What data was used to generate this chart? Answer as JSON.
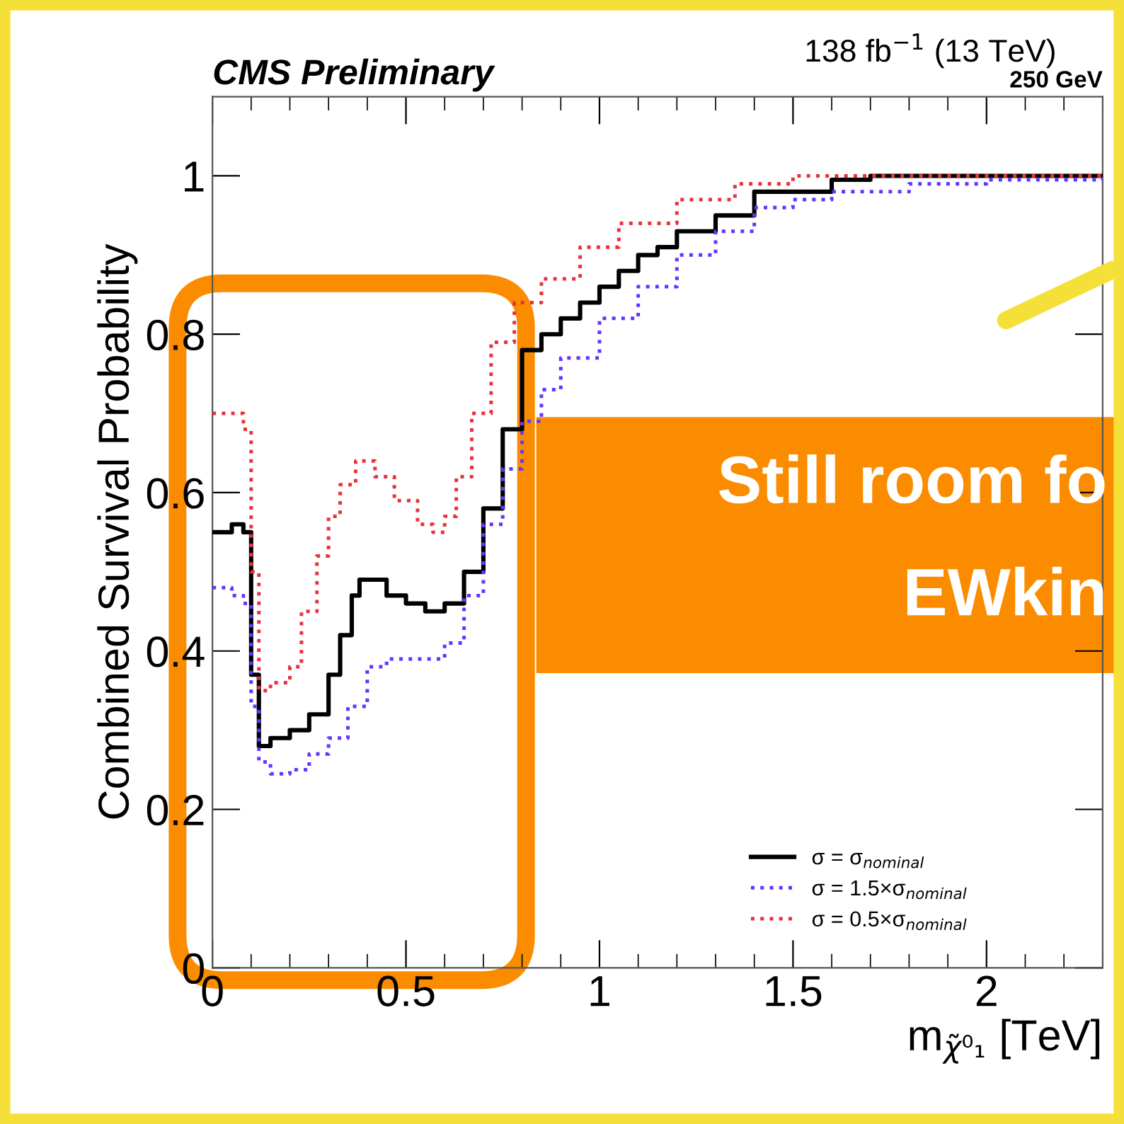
{
  "chart_data": {
    "type": "step",
    "title": "CMS Preliminary",
    "subtitle": "138 fb$^{−1}$ (13 TeV)",
    "xlabel": "m$_{χ̃⁰₁}$ [TeV]",
    "ylabel": "Combined Survival Probability",
    "annotations": [
      "250 GeV",
      "Still room fo",
      "EWkin"
    ],
    "xlim": [
      0,
      2.3
    ],
    "ylim": [
      0,
      1.1
    ],
    "xticks": [
      0,
      0.5,
      1,
      1.5,
      2
    ],
    "yticks": [
      0,
      0.2,
      0.4,
      0.6,
      0.8,
      1
    ],
    "grid": false,
    "legend": "bottom right",
    "series": [
      {
        "name": "σ = σ$_{nominal}$",
        "color": "#000000",
        "line_style": "solid",
        "x": [
          0,
          0.05,
          0.08,
          0.1,
          0.12,
          0.15,
          0.2,
          0.25,
          0.3,
          0.33,
          0.36,
          0.38,
          0.42,
          0.45,
          0.5,
          0.55,
          0.6,
          0.65,
          0.7,
          0.75,
          0.8,
          0.85,
          0.9,
          0.95,
          1.0,
          1.05,
          1.1,
          1.15,
          1.2,
          1.3,
          1.4,
          1.5,
          1.6,
          1.7,
          2.0,
          2.3
        ],
        "values": [
          0.55,
          0.56,
          0.55,
          0.37,
          0.28,
          0.29,
          0.3,
          0.32,
          0.37,
          0.42,
          0.47,
          0.49,
          0.49,
          0.47,
          0.46,
          0.45,
          0.46,
          0.5,
          0.58,
          0.68,
          0.78,
          0.8,
          0.82,
          0.84,
          0.86,
          0.88,
          0.9,
          0.91,
          0.93,
          0.95,
          0.98,
          0.98,
          0.995,
          1.0,
          1.0,
          1.0
        ]
      },
      {
        "name": "σ = 1.5×σ$_{nominal}$",
        "color": "#6633ff",
        "line_style": "dotted",
        "x": [
          0,
          0.05,
          0.08,
          0.1,
          0.12,
          0.15,
          0.2,
          0.25,
          0.3,
          0.35,
          0.4,
          0.45,
          0.5,
          0.55,
          0.6,
          0.65,
          0.7,
          0.75,
          0.8,
          0.85,
          0.9,
          1.0,
          1.1,
          1.2,
          1.3,
          1.4,
          1.5,
          1.6,
          1.8,
          2.0,
          2.3
        ],
        "values": [
          0.48,
          0.47,
          0.46,
          0.33,
          0.26,
          0.245,
          0.25,
          0.27,
          0.29,
          0.33,
          0.38,
          0.39,
          0.39,
          0.39,
          0.41,
          0.47,
          0.56,
          0.63,
          0.69,
          0.73,
          0.77,
          0.82,
          0.86,
          0.9,
          0.93,
          0.96,
          0.97,
          0.98,
          0.99,
          0.995,
          1.0
        ]
      },
      {
        "name": "σ = 0.5×σ$_{nominal}$",
        "color": "#e8333a",
        "line_style": "dotted",
        "x": [
          0,
          0.05,
          0.08,
          0.1,
          0.12,
          0.15,
          0.2,
          0.23,
          0.27,
          0.3,
          0.33,
          0.37,
          0.42,
          0.47,
          0.53,
          0.57,
          0.6,
          0.63,
          0.67,
          0.72,
          0.78,
          0.85,
          0.95,
          1.05,
          1.2,
          1.35,
          1.5,
          2.3
        ],
        "values": [
          0.7,
          0.7,
          0.68,
          0.5,
          0.35,
          0.36,
          0.38,
          0.45,
          0.52,
          0.57,
          0.61,
          0.64,
          0.62,
          0.59,
          0.56,
          0.55,
          0.57,
          0.62,
          0.7,
          0.79,
          0.84,
          0.87,
          0.91,
          0.94,
          0.97,
          0.99,
          1.0,
          1.0
        ]
      }
    ]
  }
}
